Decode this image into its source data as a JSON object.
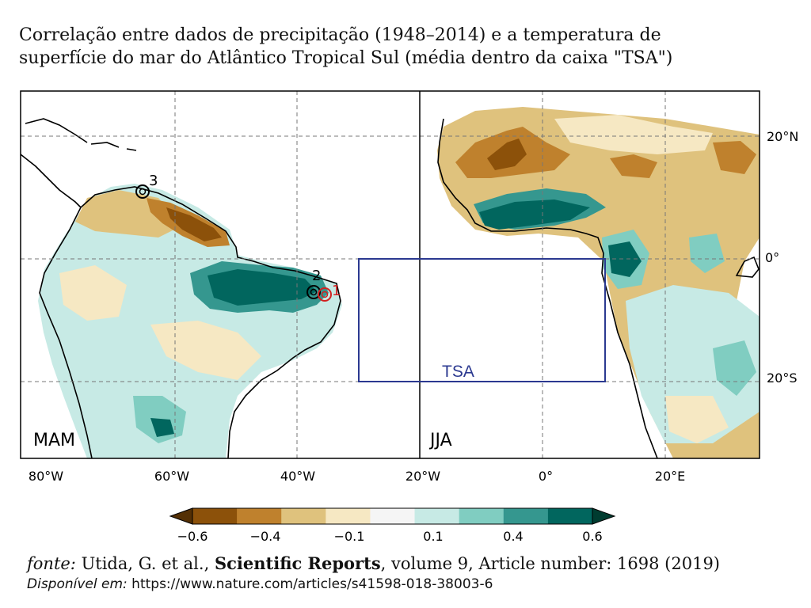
{
  "title": {
    "line1": "Correlação entre dados de precipitação (1948–2014) e a temperatura de",
    "line2": "superfície do mar do Atlântico Tropical Sul (média dentro da caixa \"TSA\")"
  },
  "panels": {
    "left_label": "MAM",
    "right_label": "JJA"
  },
  "box_label": "TSA",
  "markers": [
    {
      "label": "1",
      "color": "#d22020"
    },
    {
      "label": "2",
      "color": "#000000"
    },
    {
      "label": "3",
      "color": "#000000"
    }
  ],
  "axes": {
    "lon_ticks": [
      "80°W",
      "60°W",
      "40°W",
      "20°W",
      "0°",
      "20°E"
    ],
    "lat_ticks": [
      "20°N",
      "0°",
      "20°S"
    ]
  },
  "colorbar": {
    "tick_labels": [
      "−0.6",
      "−0.4",
      "−0.1",
      "0.1",
      "0.4",
      "0.6"
    ],
    "colors": [
      "#543005",
      "#8c510a",
      "#bf812d",
      "#dfc27d",
      "#f6e8c3",
      "#f5f5f5",
      "#c7eae5",
      "#80cdc1",
      "#35978f",
      "#01665e",
      "#003c30"
    ]
  },
  "caption": {
    "source_prefix": "fonte:",
    "authors": "Utida, G. et al.,",
    "journal": "Scientific Reports",
    "details": ", volume 9, Article number: 1698 (2019)",
    "available_prefix": "Disponível em:",
    "url": "https://www.nature.com/articles/s41598-018-38003-6"
  },
  "palette": {
    "brown_dark": "#8c510a",
    "brown": "#bf812d",
    "tan": "#dfc27d",
    "cream": "#f6e8c3",
    "teal_light": "#c7eae5",
    "teal_mid": "#80cdc1",
    "teal": "#35978f",
    "teal_dark": "#01665e",
    "box": "#2b3990"
  }
}
